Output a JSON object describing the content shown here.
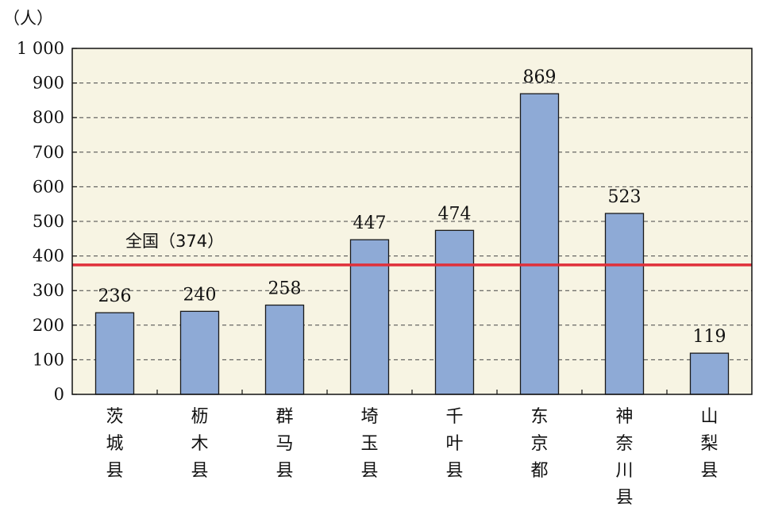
{
  "chart_data": {
    "type": "bar",
    "unit_label": "（人）",
    "categories": [
      "茨城县",
      "枥木县",
      "群马县",
      "埼玉县",
      "千叶县",
      "东京都",
      "神奈川县",
      "山梨县"
    ],
    "values": [
      236,
      240,
      258,
      447,
      474,
      869,
      523,
      119
    ],
    "value_labels": [
      "236",
      "240",
      "258",
      "447",
      "474",
      "869",
      "523",
      "119"
    ],
    "ylim": [
      0,
      1000
    ],
    "yticks": [
      0,
      100,
      200,
      300,
      400,
      500,
      600,
      700,
      800,
      900,
      1000
    ],
    "ytick_labels": [
      "0",
      "100",
      "200",
      "300",
      "400",
      "500",
      "600",
      "700",
      "800",
      "900",
      "1 000"
    ],
    "reference_line": {
      "value": 374,
      "label": "全国（374）"
    },
    "grid": "dashed horizontal",
    "colors": {
      "bar": "#8eaad6",
      "bar_edge": "#1a1a1a",
      "plot_bg": "#f7f4e3",
      "reference": "#e0303a"
    }
  }
}
